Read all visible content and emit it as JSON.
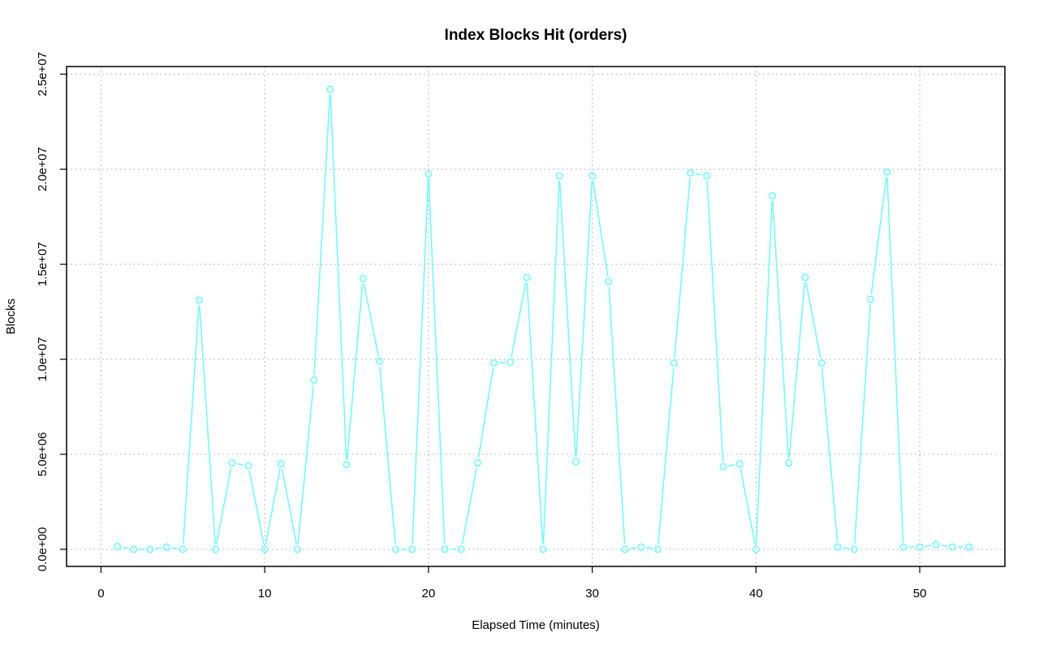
{
  "colors": {
    "series": "#66ffff"
  },
  "chart_data": {
    "type": "line",
    "title": "Index Blocks Hit (orders)",
    "xlabel": "Elapsed Time (minutes)",
    "ylabel": "Blocks",
    "xlim": [
      -2.1,
      55.2
    ],
    "ylim": [
      -900000,
      25400000
    ],
    "x_ticks": [
      0,
      10,
      20,
      30,
      40,
      50
    ],
    "x_tick_labels": [
      "0",
      "10",
      "20",
      "30",
      "40",
      "50"
    ],
    "y_ticks": [
      0,
      5000000,
      10000000,
      15000000,
      20000000,
      25000000
    ],
    "y_tick_labels": [
      "0.0e+00",
      "5.0e+06",
      "1.0e+07",
      "1.5e+07",
      "2.0e+07",
      "2.5e+07"
    ],
    "grid": true,
    "series": [
      {
        "x": [
          1,
          2,
          3,
          4,
          5,
          6,
          7,
          8,
          9,
          10,
          11,
          12,
          13,
          14,
          15,
          16,
          17,
          18,
          19,
          20,
          21,
          22,
          23,
          24,
          25,
          26,
          27,
          28,
          29,
          30,
          31,
          32,
          33,
          34,
          35,
          36,
          37,
          38,
          39,
          40,
          41,
          42,
          43,
          44,
          45,
          46,
          47,
          48,
          49,
          50,
          51,
          52,
          53
        ],
        "values": [
          150000,
          0,
          0,
          120000,
          0,
          13100000,
          0,
          4550000,
          4400000,
          0,
          4500000,
          0,
          8900000,
          24200000,
          4450000,
          14250000,
          9900000,
          0,
          0,
          19750000,
          0,
          0,
          4550000,
          9800000,
          9850000,
          14300000,
          0,
          19650000,
          4600000,
          19650000,
          14100000,
          0,
          120000,
          0,
          9800000,
          19800000,
          19650000,
          4350000,
          4500000,
          0,
          18600000,
          4550000,
          14300000,
          9800000,
          120000,
          0,
          13150000,
          19850000,
          120000,
          120000,
          250000,
          120000,
          120000
        ]
      }
    ]
  }
}
